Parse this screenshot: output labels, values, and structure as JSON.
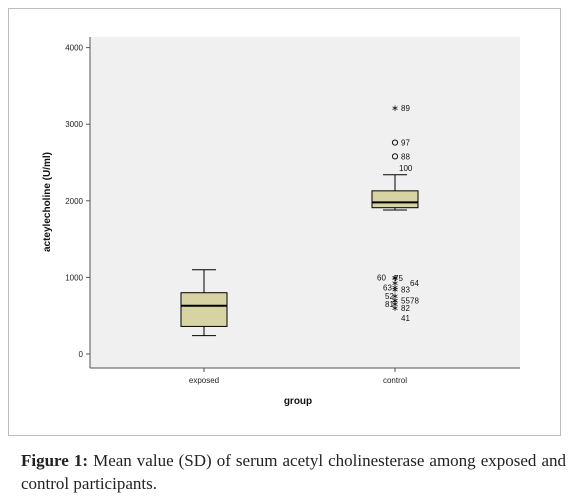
{
  "chart_data": {
    "type": "boxplot",
    "xlabel": "group",
    "ylabel": "acteylecholine (U/ml)",
    "ylim": [
      -200,
      4200
    ],
    "yticks": [
      0,
      1000,
      2000,
      3000,
      4000
    ],
    "categories": [
      "exposed",
      "control"
    ],
    "box_color": "#d8d3a3",
    "plot_background": "#f0f0f0",
    "boxes": [
      {
        "group": "exposed",
        "whisker_low": 240,
        "q1": 360,
        "median": 630,
        "q3": 800,
        "whisker_high": 1100,
        "outliers": []
      },
      {
        "group": "control",
        "whisker_low": 1880,
        "q1": 1910,
        "median": 1980,
        "q3": 2130,
        "whisker_high": 2340,
        "outliers": [
          {
            "label": "89",
            "value": 3210,
            "marker": "star"
          },
          {
            "label": "97",
            "value": 2760,
            "marker": "circle"
          },
          {
            "label": "88",
            "value": 2580,
            "marker": "circle"
          },
          {
            "label": "100",
            "value": 2430,
            "marker": "none"
          },
          {
            "label": "60",
            "value": 1000,
            "marker": "star"
          },
          {
            "label": "75",
            "value": 990,
            "marker": "star"
          },
          {
            "label": "64",
            "value": 930,
            "marker": "star"
          },
          {
            "label": "63",
            "value": 870,
            "marker": "star"
          },
          {
            "label": "83",
            "value": 840,
            "marker": "star"
          },
          {
            "label": "52",
            "value": 760,
            "marker": "star"
          },
          {
            "label": "55",
            "value": 700,
            "marker": "star"
          },
          {
            "label": "78",
            "value": 700,
            "marker": "star"
          },
          {
            "label": "81",
            "value": 650,
            "marker": "star"
          },
          {
            "label": "82",
            "value": 600,
            "marker": "star"
          },
          {
            "label": "41",
            "value": 470,
            "marker": "none"
          }
        ]
      }
    ]
  },
  "caption": {
    "label": "Figure 1:",
    "text": " Mean value (SD) of serum acetyl cholinesterase among exposed and control participants."
  }
}
